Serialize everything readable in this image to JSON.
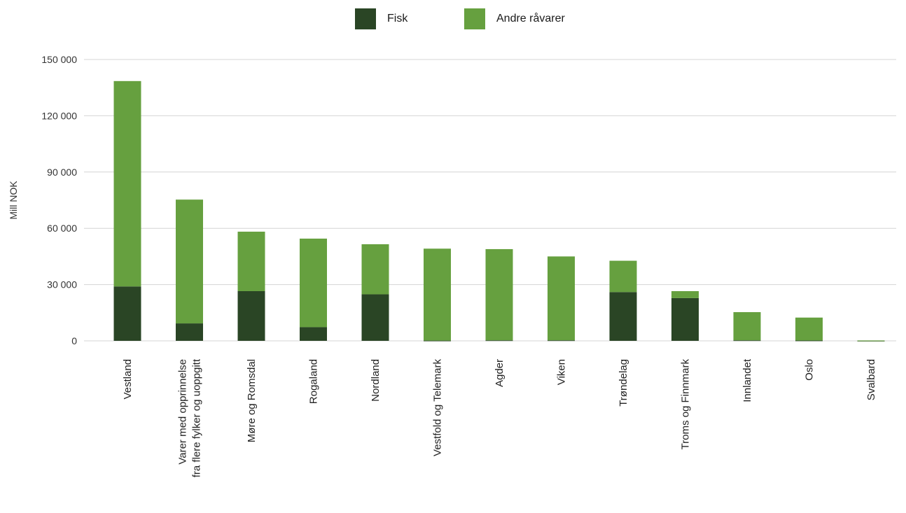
{
  "chart_data": {
    "type": "bar",
    "stacked": true,
    "title": "",
    "xlabel": "",
    "ylabel": "Mill NOK",
    "ylim": [
      0,
      150000
    ],
    "yticks": [
      0,
      30000,
      60000,
      90000,
      120000,
      150000
    ],
    "ytick_labels": [
      "0",
      "30 000",
      "60 000",
      "90 000",
      "120 000",
      "150 000"
    ],
    "grid": "horizontal",
    "legend_position": "top-center",
    "categories": [
      [
        "Vestland"
      ],
      [
        "Varer med opprinnelse",
        "fra flere fylker og uoppgitt"
      ],
      [
        "Møre og Romsdal"
      ],
      [
        "Rogaland"
      ],
      [
        "Nordland"
      ],
      [
        "Vestfold og Telemark"
      ],
      [
        "Agder"
      ],
      [
        "Viken"
      ],
      [
        "Trøndelag"
      ],
      [
        "Troms og Finnmark"
      ],
      [
        "Innlandet"
      ],
      [
        "Oslo"
      ],
      [
        "Svalbard"
      ]
    ],
    "series": [
      {
        "name": "Fisk",
        "color": "#2a4525",
        "values": [
          29000,
          9300,
          26500,
          7300,
          24800,
          150,
          300,
          300,
          26000,
          22800,
          300,
          200,
          50
        ]
      },
      {
        "name": "Andre råvarer",
        "color": "#66a03f",
        "values": [
          109500,
          66000,
          31700,
          47200,
          26700,
          49000,
          48600,
          44700,
          16700,
          3700,
          15000,
          12200,
          150
        ]
      }
    ]
  }
}
